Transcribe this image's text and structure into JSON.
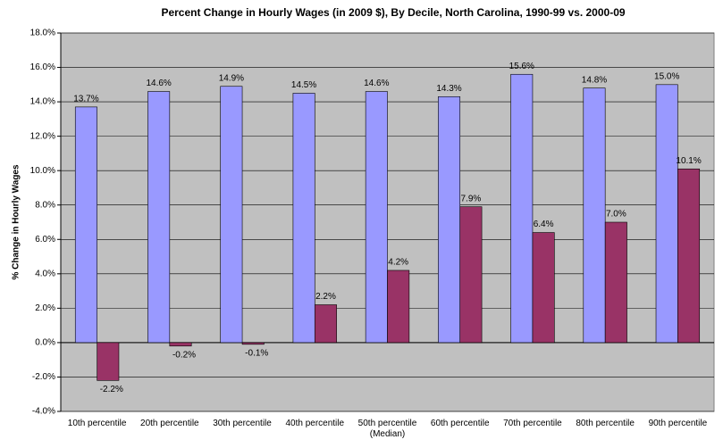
{
  "chart_data": {
    "type": "bar",
    "title": "Percent Change in Hourly Wages (in 2009 $), By Decile, North Carolina, 1990-99 vs. 2000-09",
    "y_label": "% Change in Hourly Wages",
    "categories": [
      "10th percentile",
      "20th percentile",
      "30th percentile",
      "40th percentile",
      "50th percentile (Median)",
      "60th percentile",
      "70th percentile",
      "80th percentile",
      "90th percentile"
    ],
    "series": [
      {
        "color": "#9999ff",
        "values": [
          13.7,
          14.6,
          14.9,
          14.5,
          14.6,
          14.3,
          15.6,
          14.8,
          15.0
        ],
        "value_labels": [
          "13.7%",
          "14.6%",
          "14.9%",
          "14.5%",
          "14.6%",
          "14.3%",
          "15.6%",
          "14.8%",
          "15.0%"
        ]
      },
      {
        "color": "#993366",
        "values": [
          -2.2,
          -0.2,
          -0.1,
          2.2,
          4.2,
          7.9,
          6.4,
          7.0,
          10.1
        ],
        "value_labels": [
          "-2.2%",
          "-0.2%",
          "-0.1%",
          "2.2%",
          "4.2%",
          "7.9%",
          "6.4%",
          "7.0%",
          "10.1%"
        ]
      }
    ],
    "ylim": [
      -4,
      18
    ],
    "yticks": [
      {
        "value": -4,
        "label": "-4.0%"
      },
      {
        "value": -2,
        "label": "-2.0%"
      },
      {
        "value": 0,
        "label": "0.0%"
      },
      {
        "value": 2,
        "label": "2.0%"
      },
      {
        "value": 4,
        "label": "4.0%"
      },
      {
        "value": 6,
        "label": "6.0%"
      },
      {
        "value": 8,
        "label": "8.0%"
      },
      {
        "value": 10,
        "label": "10.0%"
      },
      {
        "value": 12,
        "label": "12.0%"
      },
      {
        "value": 14,
        "label": "14.0%"
      },
      {
        "value": 16,
        "label": "16.0%"
      },
      {
        "value": 18,
        "label": "18.0%"
      }
    ],
    "grid": true
  }
}
